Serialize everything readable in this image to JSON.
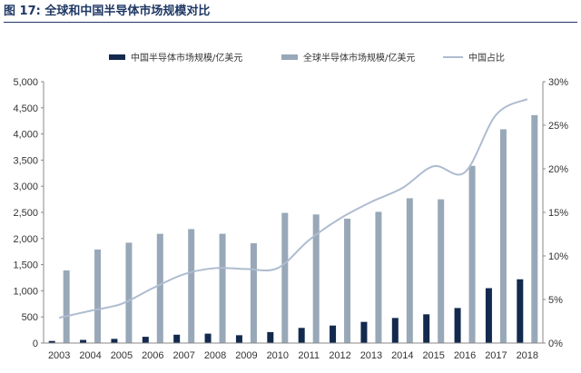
{
  "figure": {
    "title": "图 17:  全球和中国半导体市场规模对比"
  },
  "chart_data": {
    "type": "bar",
    "categories": [
      "2003",
      "2004",
      "2005",
      "2006",
      "2007",
      "2008",
      "2009",
      "2010",
      "2011",
      "2012",
      "2013",
      "2014",
      "2015",
      "2016",
      "2017",
      "2018"
    ],
    "series": [
      {
        "name": "中国半导体市场规模/亿美元",
        "kind": "bar",
        "axis": "left",
        "color": "#132a4e",
        "values": [
          40,
          60,
          80,
          120,
          160,
          180,
          150,
          210,
          290,
          335,
          405,
          480,
          550,
          670,
          1050,
          1220
        ]
      },
      {
        "name": "全球半导体市场规模/亿美元",
        "kind": "bar",
        "axis": "left",
        "color": "#98a8b8",
        "values": [
          1390,
          1790,
          1920,
          2090,
          2180,
          2090,
          1910,
          2490,
          2460,
          2380,
          2510,
          2770,
          2750,
          3390,
          4090,
          4360
        ]
      },
      {
        "name": "中国占比",
        "kind": "line",
        "axis": "right",
        "color": "#aebcd0",
        "values": [
          0.029,
          0.037,
          0.045,
          0.063,
          0.079,
          0.086,
          0.085,
          0.086,
          0.118,
          0.143,
          0.162,
          0.178,
          0.203,
          0.196,
          0.262,
          0.28
        ]
      }
    ],
    "left_axis": {
      "ylim": [
        0,
        5000
      ],
      "ticks": [
        0,
        500,
        1000,
        1500,
        2000,
        2500,
        3000,
        3500,
        4000,
        4500,
        5000
      ],
      "tick_labels": [
        "0",
        "500",
        "1,000",
        "1,500",
        "2,000",
        "2,500",
        "3,000",
        "3,500",
        "4,000",
        "4,500",
        "5,000"
      ]
    },
    "right_axis": {
      "ylim": [
        0,
        0.3
      ],
      "ticks": [
        0,
        0.05,
        0.1,
        0.15,
        0.2,
        0.25,
        0.3
      ],
      "tick_labels": [
        "0%",
        "5%",
        "10%",
        "15%",
        "20%",
        "25%",
        "30%"
      ]
    },
    "legend_position": "top",
    "grid": false
  }
}
